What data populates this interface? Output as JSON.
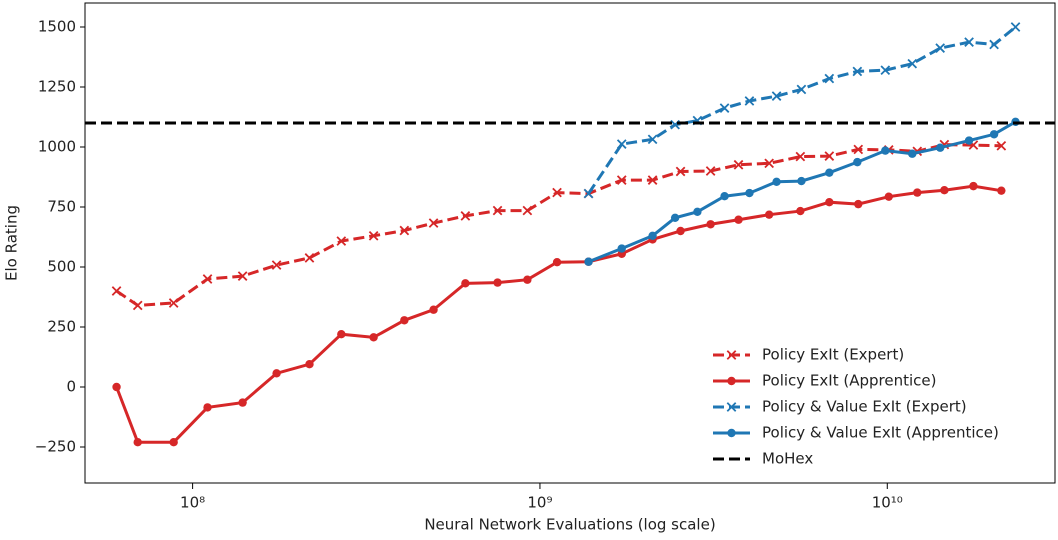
{
  "chart_data": {
    "type": "line",
    "xlabel": "Neural Network Evaluations (log scale)",
    "ylabel": "Elo Rating",
    "xscale": "log",
    "xlim": [
      49000000,
      30400000000
    ],
    "ylim": [
      -400,
      1600
    ],
    "xticks": [
      {
        "value": 100000000,
        "label": "10⁸"
      },
      {
        "value": 1000000000,
        "label": "10⁹"
      },
      {
        "value": 10000000000,
        "label": "10¹⁰"
      }
    ],
    "yticks": [
      {
        "value": -250,
        "label": "−250"
      },
      0,
      250,
      500,
      750,
      1000,
      1250,
      1500
    ],
    "legend": "lower right",
    "series": [
      {
        "name": "Policy ExIt (Expert)",
        "color": "#d62728",
        "dash": true,
        "marker": "x",
        "x": [
          60400000,
          69500000,
          88200000,
          110400000,
          139300000,
          174500000,
          217000000,
          268000000,
          332000000,
          407000000,
          494000000,
          610000000,
          755000000,
          920000000,
          1120000000,
          1380000000,
          1720000000,
          2110000000,
          2540000000,
          3100000000,
          3730000000,
          4570000000,
          5620000000,
          6810000000,
          8250000000,
          10100000000,
          12200000000,
          14600000000,
          17700000000,
          21300000000
        ],
        "values": [
          400,
          340,
          350,
          450,
          462,
          508,
          538,
          608,
          630,
          652,
          683,
          713,
          735,
          735,
          810,
          806,
          862,
          862,
          898,
          900,
          926,
          932,
          960,
          962,
          990,
          988,
          982,
          1010,
          1008,
          1005
        ]
      },
      {
        "name": "Policy ExIt (Apprentice)",
        "color": "#d62728",
        "dash": false,
        "marker": "o",
        "x": [
          60400000,
          69500000,
          88200000,
          110400000,
          139300000,
          174500000,
          217000000,
          268000000,
          332000000,
          407000000,
          494000000,
          610000000,
          755000000,
          920000000,
          1120000000,
          1380000000,
          1720000000,
          2110000000,
          2540000000,
          3100000000,
          3730000000,
          4570000000,
          5620000000,
          6810000000,
          8250000000,
          10100000000,
          12200000000,
          14600000000,
          17700000000,
          21300000000
        ],
        "values": [
          0,
          -230,
          -230,
          -85,
          -65,
          57,
          95,
          220,
          207,
          278,
          322,
          432,
          435,
          447,
          520,
          522,
          555,
          615,
          650,
          678,
          697,
          718,
          733,
          770,
          762,
          793,
          810,
          820,
          837,
          818
        ]
      },
      {
        "name": "Policy & Value ExIt (Expert)",
        "color": "#1f77b4",
        "dash": true,
        "marker": "x",
        "x": [
          1380000000,
          1720000000,
          2110000000,
          2450000000,
          2840000000,
          3400000000,
          4010000000,
          4800000000,
          5660000000,
          6810000000,
          8200000000,
          9870000000,
          11800000000,
          14200000000,
          17200000000,
          20300000000,
          23400000000
        ],
        "values": [
          806,
          1012,
          1032,
          1093,
          1110,
          1162,
          1192,
          1212,
          1240,
          1285,
          1315,
          1320,
          1347,
          1412,
          1437,
          1427,
          1500
        ]
      },
      {
        "name": "Policy & Value ExIt (Apprentice)",
        "color": "#1f77b4",
        "dash": false,
        "marker": "o",
        "x": [
          1380000000,
          1720000000,
          2110000000,
          2450000000,
          2840000000,
          3400000000,
          4010000000,
          4800000000,
          5660000000,
          6810000000,
          8200000000,
          9870000000,
          11800000000,
          14200000000,
          17200000000,
          20300000000,
          23400000000
        ],
        "values": [
          522,
          577,
          630,
          705,
          730,
          795,
          808,
          855,
          858,
          893,
          937,
          985,
          972,
          997,
          1027,
          1053,
          1105
        ]
      },
      {
        "name": "MoHex",
        "color": "#000000",
        "dash": true,
        "hline": 1100
      }
    ]
  }
}
